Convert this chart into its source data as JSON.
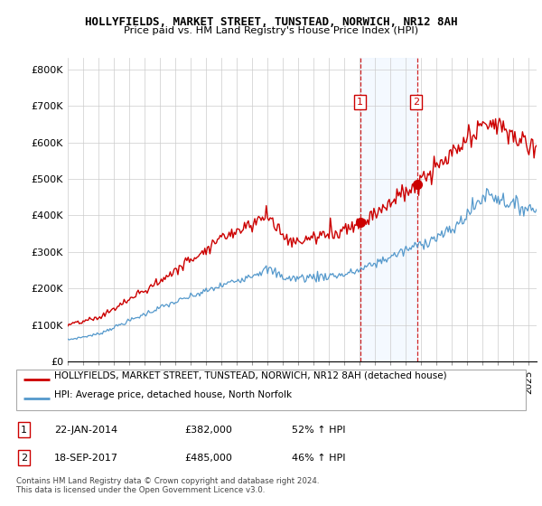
{
  "title": "HOLLYFIELDS, MARKET STREET, TUNSTEAD, NORWICH, NR12 8AH",
  "subtitle": "Price paid vs. HM Land Registry's House Price Index (HPI)",
  "ylabel_ticks": [
    "£0",
    "£100K",
    "£200K",
    "£300K",
    "£400K",
    "£500K",
    "£600K",
    "£700K",
    "£800K"
  ],
  "ytick_values": [
    0,
    100000,
    200000,
    300000,
    400000,
    500000,
    600000,
    700000,
    800000
  ],
  "ylim": [
    0,
    830000
  ],
  "xlim_start": 1995.0,
  "xlim_end": 2025.5,
  "sale1_x": 2014.06,
  "sale1_y": 382000,
  "sale2_x": 2017.72,
  "sale2_y": 485000,
  "shade_x1": 2014.06,
  "shade_x2": 2017.72,
  "legend_line1": "HOLLYFIELDS, MARKET STREET, TUNSTEAD, NORWICH, NR12 8AH (detached house)",
  "legend_line2": "HPI: Average price, detached house, North Norfolk",
  "footnote": "Contains HM Land Registry data © Crown copyright and database right 2024.\nThis data is licensed under the Open Government Licence v3.0.",
  "red_color": "#cc0000",
  "blue_color": "#5599cc",
  "shade_color": "#ddeeff"
}
